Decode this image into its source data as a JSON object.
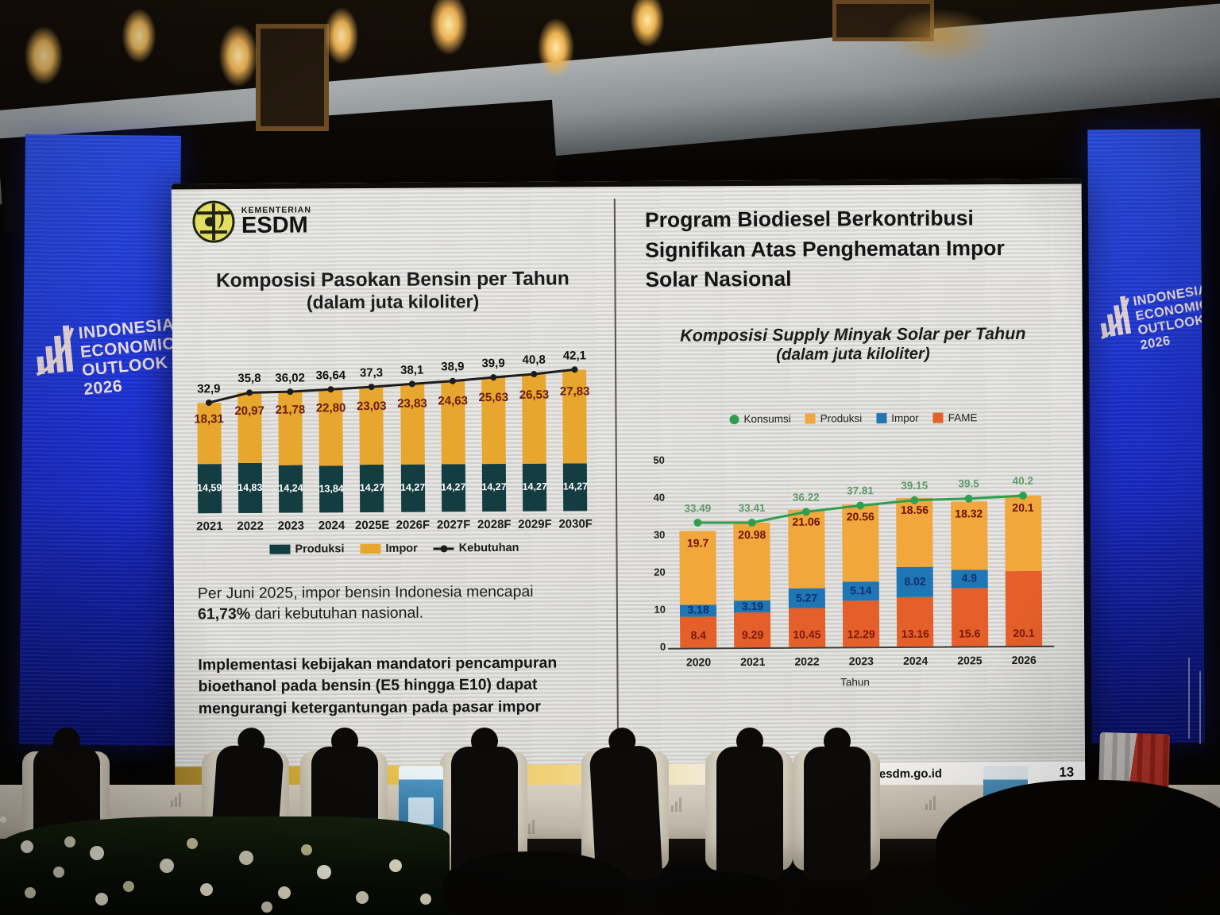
{
  "event_branding": {
    "lines": [
      "INDONESIA",
      "ECONOMIC",
      "OUTLOOK",
      "2026"
    ]
  },
  "slide": {
    "agency": {
      "ministry": "KEMENTERIAN",
      "acronym": "ESDM"
    },
    "left": {
      "title_line1": "Komposisi Pasokan Bensin per Tahun",
      "title_line2": "(dalam juta kiloliter)",
      "note1_prefix": "Per Juni 2025, impor bensin Indonesia mencapai ",
      "note1_bold": "61,73%",
      "note1_suffix": " dari kebutuhan nasional.",
      "note2": "Implementasi kebijakan mandatori pencampuran bioethanol pada bensin (E5 hingga E10) dapat mengurangi ketergantungan pada pasar impor"
    },
    "right": {
      "title": "Program Biodiesel Berkontribusi Signifikan Atas Penghematan Impor Solar Nasional",
      "subtitle_line1": "Komposisi Supply Minyak Solar per Tahun",
      "subtitle_line2": "(dalam juta kiloliter)",
      "xlabel": "Tahun"
    },
    "footer": {
      "url": "www.esdm.go.id",
      "page": "13"
    }
  },
  "chart_data": [
    {
      "type": "bar",
      "subtype": "stacked-with-line",
      "title": "Komposisi Pasokan Bensin per Tahun (dalam juta kiloliter)",
      "categories": [
        "2021",
        "2022",
        "2023",
        "2024",
        "2025E",
        "2026F",
        "2027F",
        "2028F",
        "2029F",
        "2030F"
      ],
      "series": [
        {
          "name": "Produksi",
          "kind": "bar",
          "color": "#143d42",
          "label_color": "#ffffff",
          "values": [
            14.59,
            14.83,
            14.24,
            13.84,
            14.27,
            14.27,
            14.27,
            14.27,
            14.27,
            14.27
          ],
          "labels": [
            "14,59",
            "14,83",
            "14,24",
            "13,84",
            "14,27",
            "14,27",
            "14,27",
            "14,27",
            "14,27",
            "14,27"
          ]
        },
        {
          "name": "Impor",
          "kind": "bar",
          "color": "#e7a72e",
          "label_color": "#6b1a0e",
          "values": [
            18.31,
            20.97,
            21.78,
            22.8,
            23.03,
            23.83,
            24.63,
            25.63,
            26.53,
            27.83
          ],
          "labels": [
            "18,31",
            "20,97",
            "21,78",
            "22,80",
            "23,03",
            "23,83",
            "24,63",
            "25,63",
            "26,53",
            "27,83"
          ]
        },
        {
          "name": "Kebutuhan",
          "kind": "line",
          "color": "#1c1c1c",
          "label_color": "#111111",
          "values": [
            32.9,
            35.8,
            36.02,
            36.64,
            37.3,
            38.1,
            38.9,
            39.9,
            40.8,
            42.1
          ],
          "labels": [
            "32,9",
            "35,8",
            "36,02",
            "36,64",
            "37,3",
            "38,1",
            "38,9",
            "39,9",
            "40,8",
            "42,1"
          ]
        }
      ],
      "legend_order": [
        "Produksi",
        "Impor",
        "Kebutuhan"
      ],
      "grid": false,
      "legend_position": "bottom"
    },
    {
      "type": "bar",
      "subtype": "stacked-with-line",
      "title": "Komposisi Supply Minyak Solar per Tahun (dalam juta kiloliter)",
      "categories": [
        "2020",
        "2021",
        "2022",
        "2023",
        "2024",
        "2025",
        "2026"
      ],
      "series": [
        {
          "name": "FAME",
          "kind": "bar",
          "color": "#e55f2a",
          "label_color": "#7c180b",
          "values": [
            8.4,
            9.29,
            10.45,
            12.29,
            13.16,
            15.6,
            20.1
          ],
          "labels": [
            "8.4",
            "9.29",
            "10.45",
            "12.29",
            "13.16",
            "15.6",
            "20.1"
          ]
        },
        {
          "name": "Impor",
          "kind": "bar",
          "color": "#1f76b4",
          "label_color": "#0e2f6e",
          "values": [
            3.18,
            3.19,
            5.27,
            5.14,
            8.02,
            4.9,
            0
          ],
          "labels": [
            "3.18",
            "3.19",
            "5.27",
            "5.14",
            "8.02",
            "4.9",
            ""
          ]
        },
        {
          "name": "Produksi",
          "kind": "bar",
          "color": "#f1a73b",
          "label_color": "#6b1208",
          "values": [
            19.7,
            20.98,
            21.06,
            20.56,
            18.56,
            18.32,
            20.1
          ],
          "labels": [
            "19.7",
            "20.98",
            "21.06",
            "20.56",
            "18.56",
            "18.32",
            "20.1"
          ]
        },
        {
          "name": "Konsumsi",
          "kind": "line",
          "color": "#2f9e4f",
          "label_color": "#5e9a6a",
          "values": [
            33.49,
            33.41,
            36.22,
            37.81,
            39.15,
            39.5,
            40.2
          ],
          "labels": [
            "33.49",
            "33.41",
            "36.22",
            "37.81",
            "39.15",
            "39.5",
            "40.2"
          ]
        }
      ],
      "legend_order": [
        "Konsumsi",
        "Produksi",
        "Impor",
        "FAME"
      ],
      "ylim": [
        0,
        50
      ],
      "yticks": [
        0,
        10,
        20,
        30,
        40,
        50
      ],
      "xlabel": "Tahun",
      "grid": false,
      "legend_position": "top"
    }
  ]
}
